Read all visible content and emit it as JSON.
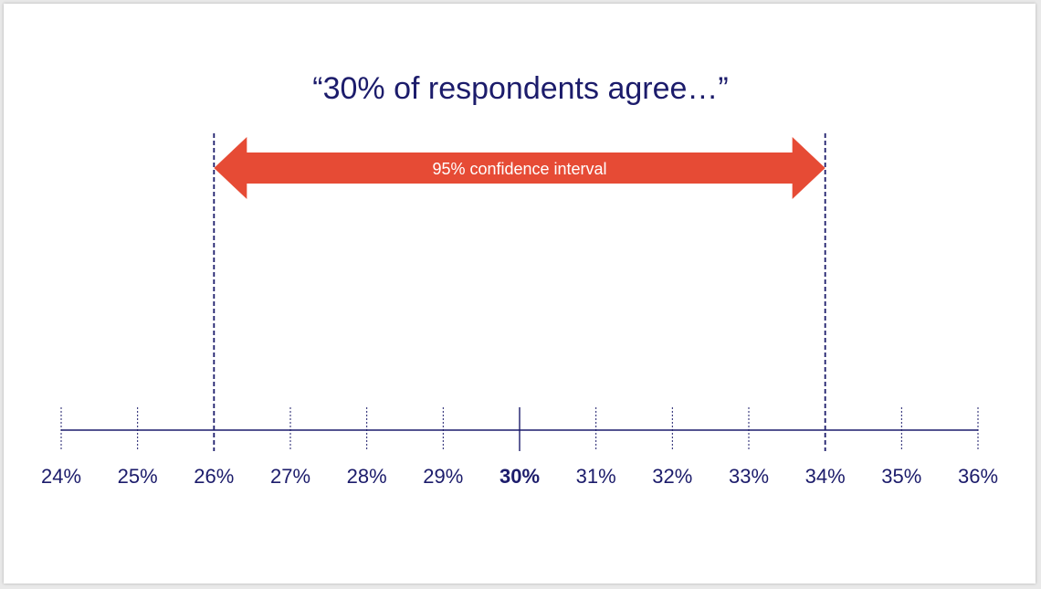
{
  "title": "“30% of respondents agree…”",
  "arrow_label": "95% confidence interval",
  "colors": {
    "ink": "#1c1c6b",
    "arrow": "#e64b35",
    "background": "#ffffff"
  },
  "chart_data": {
    "type": "number-line",
    "point_estimate": 30,
    "interval": {
      "low": 26,
      "high": 34,
      "label": "95% confidence interval"
    },
    "ticks": [
      {
        "value": 24,
        "label": "24%"
      },
      {
        "value": 25,
        "label": "25%"
      },
      {
        "value": 26,
        "label": "26%"
      },
      {
        "value": 27,
        "label": "27%"
      },
      {
        "value": 28,
        "label": "28%"
      },
      {
        "value": 29,
        "label": "29%"
      },
      {
        "value": 30,
        "label": "30%",
        "bold": true
      },
      {
        "value": 31,
        "label": "31%"
      },
      {
        "value": 32,
        "label": "32%"
      },
      {
        "value": 33,
        "label": "33%"
      },
      {
        "value": 34,
        "label": "34%"
      },
      {
        "value": 35,
        "label": "35%"
      },
      {
        "value": 36,
        "label": "36%"
      }
    ],
    "xlim": [
      24,
      36
    ]
  }
}
